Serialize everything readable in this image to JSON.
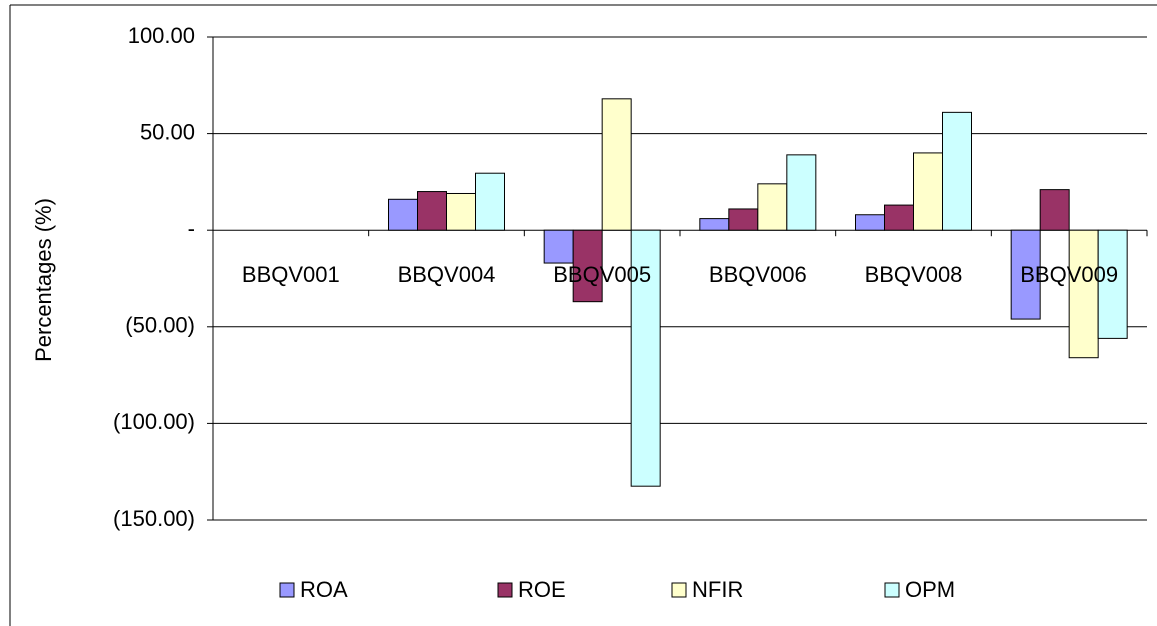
{
  "chart_data": {
    "type": "bar",
    "y_label": "Percentages (%)",
    "categories": [
      "BBQV001",
      "BBQV004",
      "BBQV005",
      "BBQV006",
      "BBQV008",
      "BBQV009"
    ],
    "series": [
      {
        "name": "ROA",
        "color": "#9999ff",
        "values": [
          0,
          16,
          -17,
          6,
          8,
          -46
        ]
      },
      {
        "name": "ROE",
        "color": "#993366",
        "values": [
          0,
          20,
          -37,
          11,
          13,
          21
        ]
      },
      {
        "name": "NFIR",
        "color": "#ffffcc",
        "values": [
          0,
          19,
          68,
          24,
          40,
          -66
        ]
      },
      {
        "name": "OPM",
        "color": "#ccffff",
        "values": [
          0,
          29.5,
          -132.5,
          39,
          61,
          -56
        ]
      }
    ],
    "ylim": [
      -150,
      100
    ],
    "yticks": [
      {
        "value": 100,
        "label": "100.00"
      },
      {
        "value": 50,
        "label": "50.00"
      },
      {
        "value": 0,
        "label": "-"
      },
      {
        "value": -50,
        "label": "(50.00)"
      },
      {
        "value": -100,
        "label": "(100.00)"
      },
      {
        "value": -150,
        "label": "(150.00)"
      }
    ],
    "grid": true,
    "legend": "bottom"
  }
}
